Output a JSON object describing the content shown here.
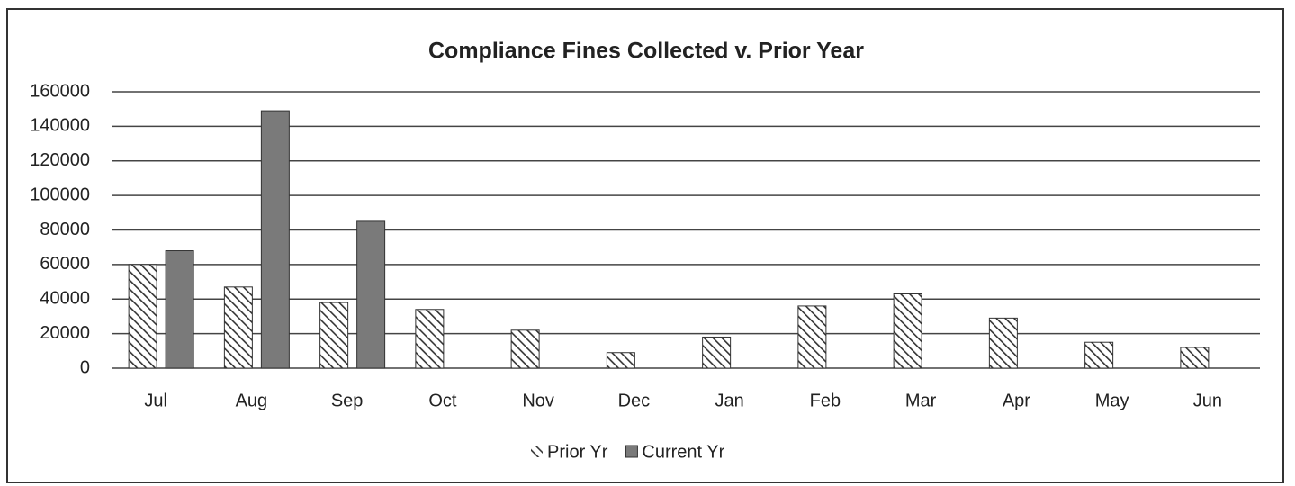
{
  "chart_data": {
    "type": "bar",
    "title": "Compliance Fines Collected v. Prior Year",
    "categories": [
      "Jul",
      "Aug",
      "Sep",
      "Oct",
      "Nov",
      "Dec",
      "Jan",
      "Feb",
      "Mar",
      "Apr",
      "May",
      "Jun"
    ],
    "series": [
      {
        "name": "Prior Yr",
        "color": "#333333",
        "hatch": true,
        "values": [
          60000,
          47000,
          38000,
          34000,
          22000,
          9000,
          18000,
          36000,
          43000,
          29000,
          15000,
          12000
        ]
      },
      {
        "name": "Current Yr",
        "color": "#7a7a7a",
        "hatch": false,
        "values": [
          68000,
          149000,
          85000,
          null,
          null,
          null,
          null,
          null,
          null,
          null,
          null,
          null
        ]
      }
    ],
    "ylim": [
      0,
      160000
    ],
    "yticks": [
      0,
      20000,
      40000,
      60000,
      80000,
      100000,
      120000,
      140000,
      160000
    ],
    "grid": true,
    "legend": "bottom"
  }
}
